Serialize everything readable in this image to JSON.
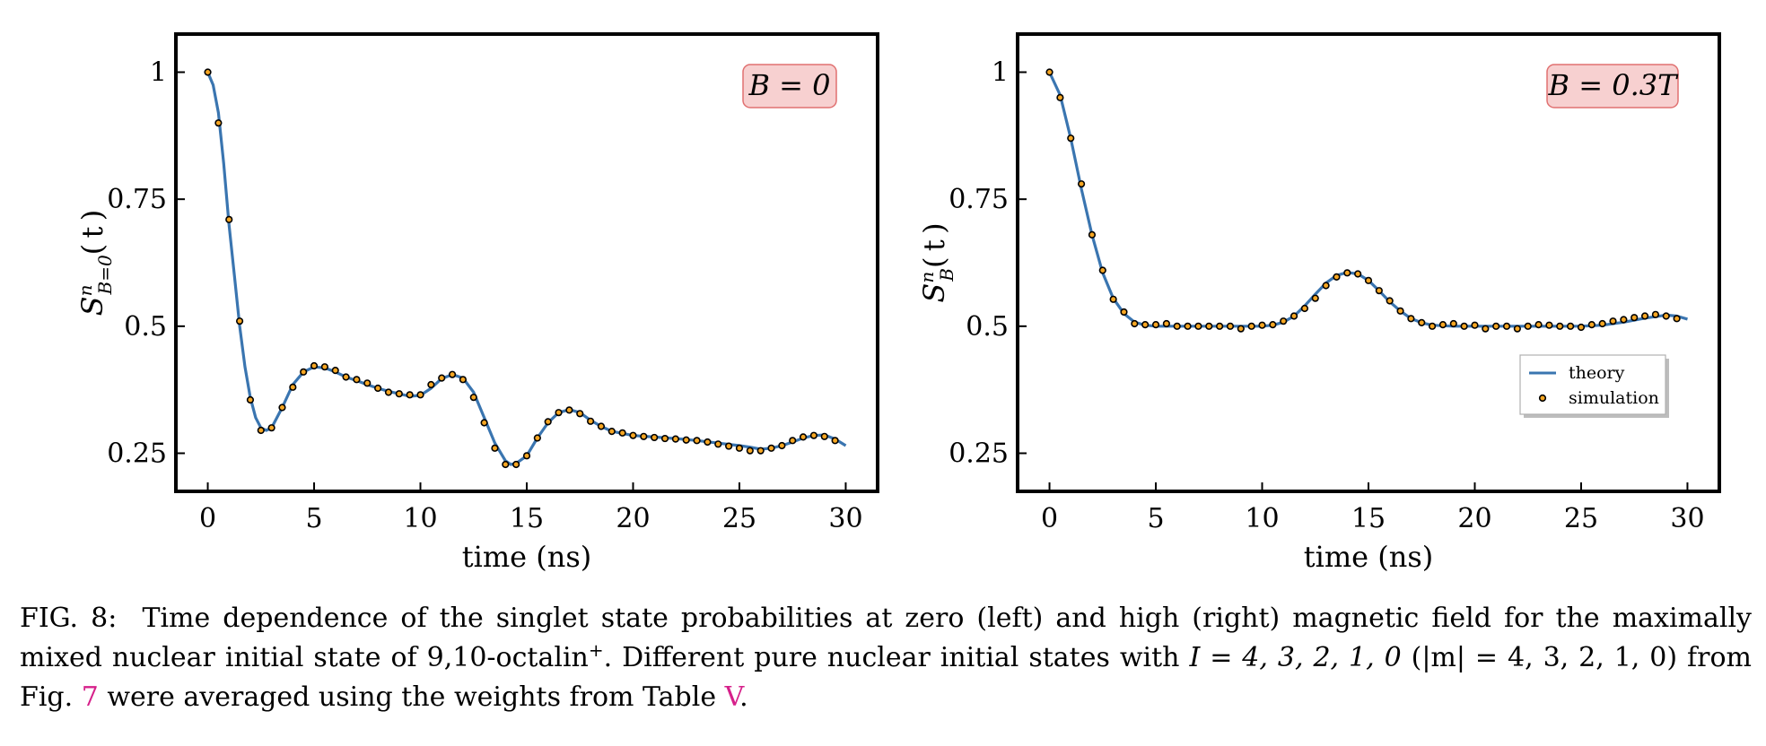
{
  "colors": {
    "theory": "#3a75b0",
    "simulation_fill": "#f5a623",
    "simulation_edge": "#000000",
    "annotation_fill": "#f7d0d0",
    "annotation_edge": "#e07070"
  },
  "chart_data": [
    {
      "type": "line",
      "annotation": "B = 0",
      "xlabel": "time (ns)",
      "ylabel": "S^n_{B=0}(t)",
      "xlim": [
        -1.5,
        31.5
      ],
      "ylim": [
        0.175,
        1.075
      ],
      "xticks": [
        0,
        5,
        10,
        15,
        20,
        25,
        30
      ],
      "xtick_labels": [
        "0",
        "5",
        "10",
        "15",
        "20",
        "25",
        "30"
      ],
      "yticks": [
        0.25,
        0.5,
        0.75,
        1
      ],
      "ytick_labels": [
        "0.25",
        "0.5",
        "0.75",
        "1"
      ],
      "grid": false,
      "series": [
        {
          "name": "theory",
          "style": "line",
          "x": [
            0,
            0.25,
            0.5,
            0.75,
            1,
            1.25,
            1.5,
            1.75,
            2,
            2.25,
            2.5,
            2.75,
            3,
            3.5,
            4,
            4.5,
            5,
            5.5,
            6,
            6.5,
            7,
            7.5,
            8,
            8.5,
            9,
            9.5,
            10,
            10.5,
            11,
            11.5,
            12,
            12.5,
            13,
            13.5,
            14,
            14.25,
            14.5,
            15,
            15.5,
            16,
            16.5,
            17,
            17.5,
            18,
            18.5,
            19,
            20,
            21,
            22,
            23,
            24,
            25,
            25.5,
            26,
            26.5,
            27,
            27.5,
            28,
            28.5,
            29,
            29.5,
            30
          ],
          "y": [
            1.0,
            0.975,
            0.92,
            0.82,
            0.7,
            0.6,
            0.5,
            0.42,
            0.36,
            0.32,
            0.3,
            0.295,
            0.3,
            0.34,
            0.385,
            0.41,
            0.42,
            0.418,
            0.41,
            0.4,
            0.393,
            0.385,
            0.378,
            0.372,
            0.367,
            0.362,
            0.364,
            0.378,
            0.397,
            0.405,
            0.398,
            0.37,
            0.32,
            0.27,
            0.235,
            0.228,
            0.23,
            0.245,
            0.28,
            0.31,
            0.33,
            0.336,
            0.33,
            0.315,
            0.303,
            0.293,
            0.285,
            0.282,
            0.279,
            0.275,
            0.27,
            0.265,
            0.262,
            0.258,
            0.26,
            0.265,
            0.272,
            0.28,
            0.285,
            0.286,
            0.278,
            0.265
          ]
        },
        {
          "name": "simulation",
          "style": "scatter",
          "x": [
            0,
            0.5,
            1,
            1.5,
            2,
            2.5,
            3,
            3.5,
            4,
            4.5,
            5,
            5.5,
            6,
            6.5,
            7,
            7.5,
            8,
            8.5,
            9,
            9.5,
            10,
            10.5,
            11,
            11.5,
            12,
            12.5,
            13,
            13.5,
            14,
            14.5,
            15,
            15.5,
            16,
            16.5,
            17,
            17.5,
            18,
            18.5,
            19,
            19.5,
            20,
            20.5,
            21,
            21.5,
            22,
            22.5,
            23,
            23.5,
            24,
            24.5,
            25,
            25.5,
            26,
            26.5,
            27,
            27.5,
            28,
            28.5,
            29,
            29.5
          ],
          "y": [
            1.0,
            0.9,
            0.71,
            0.51,
            0.355,
            0.295,
            0.3,
            0.34,
            0.38,
            0.41,
            0.422,
            0.42,
            0.413,
            0.4,
            0.395,
            0.388,
            0.378,
            0.37,
            0.367,
            0.365,
            0.365,
            0.385,
            0.398,
            0.405,
            0.395,
            0.36,
            0.31,
            0.26,
            0.228,
            0.228,
            0.245,
            0.28,
            0.312,
            0.33,
            0.335,
            0.328,
            0.313,
            0.303,
            0.293,
            0.29,
            0.285,
            0.283,
            0.281,
            0.279,
            0.278,
            0.276,
            0.275,
            0.272,
            0.268,
            0.264,
            0.26,
            0.255,
            0.255,
            0.26,
            0.265,
            0.275,
            0.282,
            0.285,
            0.283,
            0.275
          ]
        }
      ]
    },
    {
      "type": "line",
      "annotation": "B = 0.3T",
      "xlabel": "time (ns)",
      "ylabel": "S^n_B(t)",
      "xlim": [
        -1.5,
        31.5
      ],
      "ylim": [
        0.175,
        1.075
      ],
      "xticks": [
        0,
        5,
        10,
        15,
        20,
        25,
        30
      ],
      "xtick_labels": [
        "0",
        "5",
        "10",
        "15",
        "20",
        "25",
        "30"
      ],
      "yticks": [
        0.25,
        0.5,
        0.75,
        1
      ],
      "ytick_labels": [
        "0.25",
        "0.5",
        "0.75",
        "1"
      ],
      "grid": false,
      "legend": "lower right",
      "series": [
        {
          "name": "theory",
          "style": "line",
          "x": [
            0,
            0.5,
            1,
            1.5,
            2,
            2.5,
            3,
            3.5,
            4,
            4.5,
            5,
            6,
            7,
            8,
            9,
            10,
            10.5,
            11,
            11.5,
            12,
            12.5,
            13,
            13.5,
            14,
            14.5,
            15,
            15.5,
            16,
            16.5,
            17,
            17.5,
            18,
            19,
            20,
            21,
            22,
            23,
            24,
            25,
            26,
            27,
            28,
            29,
            29.5,
            30
          ],
          "y": [
            1.0,
            0.955,
            0.87,
            0.77,
            0.68,
            0.605,
            0.555,
            0.525,
            0.508,
            0.502,
            0.5,
            0.5,
            0.5,
            0.5,
            0.5,
            0.5,
            0.502,
            0.508,
            0.52,
            0.54,
            0.563,
            0.585,
            0.6,
            0.606,
            0.603,
            0.59,
            0.57,
            0.548,
            0.53,
            0.515,
            0.507,
            0.502,
            0.5,
            0.5,
            0.5,
            0.5,
            0.5,
            0.5,
            0.5,
            0.502,
            0.508,
            0.516,
            0.522,
            0.52,
            0.514
          ]
        },
        {
          "name": "simulation",
          "style": "scatter",
          "x": [
            0,
            0.5,
            1,
            1.5,
            2,
            2.5,
            3,
            3.5,
            4,
            4.5,
            5,
            5.5,
            6,
            6.5,
            7,
            7.5,
            8,
            8.5,
            9,
            9.5,
            10,
            10.5,
            11,
            11.5,
            12,
            12.5,
            13,
            13.5,
            14,
            14.5,
            15,
            15.5,
            16,
            16.5,
            17,
            17.5,
            18,
            18.5,
            19,
            19.5,
            20,
            20.5,
            21,
            21.5,
            22,
            22.5,
            23,
            23.5,
            24,
            24.5,
            25,
            25.5,
            26,
            26.5,
            27,
            27.5,
            28,
            28.5,
            29,
            29.5
          ],
          "y": [
            1.0,
            0.95,
            0.87,
            0.78,
            0.68,
            0.61,
            0.553,
            0.528,
            0.505,
            0.503,
            0.503,
            0.505,
            0.5,
            0.5,
            0.5,
            0.5,
            0.5,
            0.5,
            0.495,
            0.5,
            0.502,
            0.503,
            0.51,
            0.52,
            0.535,
            0.555,
            0.58,
            0.597,
            0.605,
            0.603,
            0.59,
            0.57,
            0.55,
            0.53,
            0.515,
            0.507,
            0.5,
            0.503,
            0.505,
            0.5,
            0.502,
            0.495,
            0.5,
            0.5,
            0.495,
            0.5,
            0.503,
            0.502,
            0.5,
            0.5,
            0.498,
            0.503,
            0.505,
            0.51,
            0.513,
            0.517,
            0.52,
            0.523,
            0.52,
            0.515
          ]
        }
      ]
    }
  ],
  "caption": {
    "label": "FIG. 8:",
    "text_1": "Time dependence of the singlet state probabilities at zero (left) and high (right) magnetic field for the maximally mixed nuclear initial state of 9,10-octalin",
    "text_sup": "+",
    "text_2": ". Different pure nuclear initial states with",
    "math_1": "I = 4, 3, 2, 1, 0",
    "math_2": "(|m| = 4, 3, 2, 1, 0)",
    "text_3": "from Fig.",
    "ref_fig": "7",
    "text_4": "were averaged using the weights from Table",
    "ref_table": "V",
    "text_5": "."
  }
}
